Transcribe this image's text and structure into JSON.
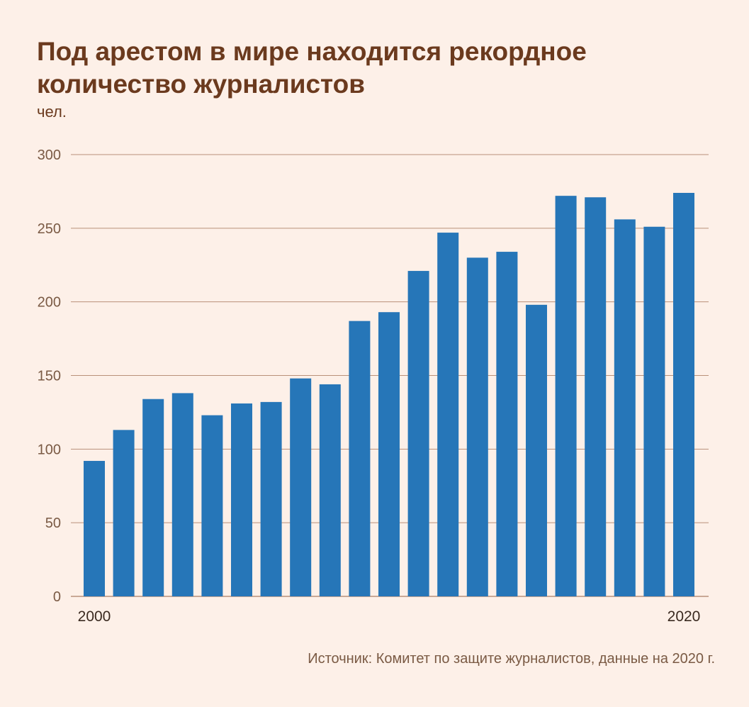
{
  "title": "Под арестом в мире находится рекордное количество журналистов",
  "unit_label": "чел.",
  "source": "Источник: Комитет по защите журналистов, данные на 2020 г.",
  "colors": {
    "bar": "#2676b8",
    "grid": "#b9917a",
    "text": "#6b3a1e",
    "background": "#fdf0e8"
  },
  "chart_data": {
    "type": "bar",
    "title": "Под арестом в мире находится рекордное количество журналистов",
    "ylabel": "чел.",
    "xlabel": "",
    "categories": [
      "2000",
      "2001",
      "2002",
      "2003",
      "2004",
      "2005",
      "2006",
      "2007",
      "2008",
      "2009",
      "2010",
      "2011",
      "2012",
      "2013",
      "2014",
      "2015",
      "2016",
      "2017",
      "2018",
      "2019",
      "2020"
    ],
    "values": [
      92,
      113,
      134,
      138,
      123,
      131,
      132,
      148,
      144,
      187,
      193,
      221,
      247,
      230,
      234,
      198,
      272,
      271,
      256,
      251,
      274
    ],
    "x_tick_labels": [
      "2000",
      "2020"
    ],
    "y_ticks": [
      0,
      50,
      100,
      150,
      200,
      250,
      300
    ],
    "ylim": [
      0,
      300
    ],
    "grid": true,
    "legend": "none"
  }
}
